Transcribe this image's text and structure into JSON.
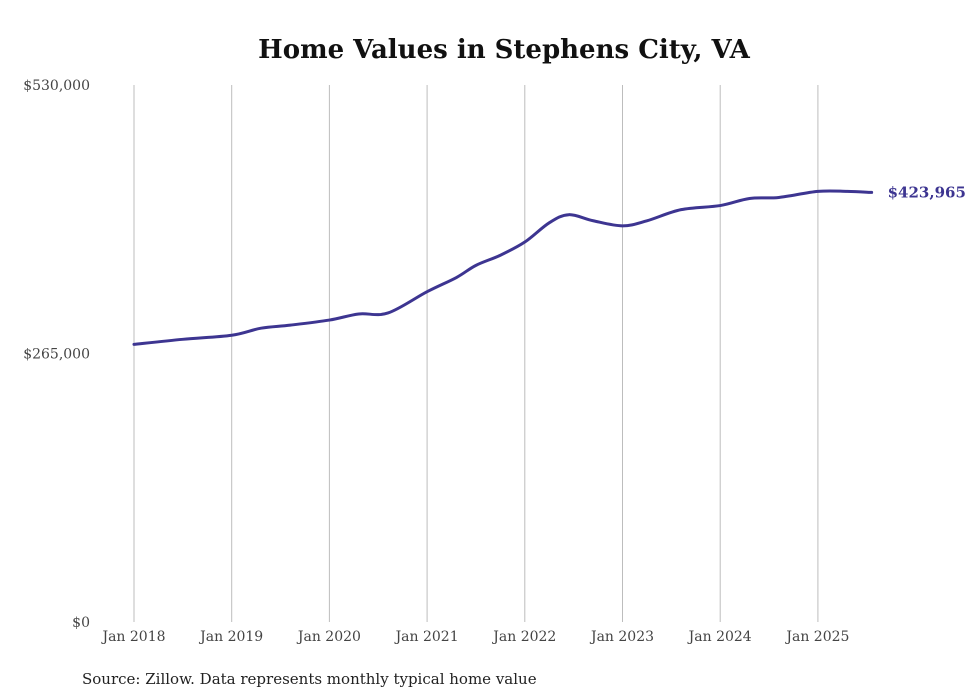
{
  "chart_data": {
    "type": "line",
    "title": "Home Values in Stephens City, VA",
    "source": "Source: Zillow. Data represents monthly typical home value",
    "xlabel": "",
    "ylabel": "",
    "ylim": [
      0,
      530000
    ],
    "xlim": [
      2018.0,
      2025.55
    ],
    "y_ticks": [
      {
        "value": 0,
        "label": "$0"
      },
      {
        "value": 265000,
        "label": "$265,000"
      },
      {
        "value": 530000,
        "label": "$530,000"
      }
    ],
    "x_ticks": [
      {
        "value": 2018,
        "label": "Jan 2018"
      },
      {
        "value": 2019,
        "label": "Jan 2019"
      },
      {
        "value": 2020,
        "label": "Jan 2020"
      },
      {
        "value": 2021,
        "label": "Jan 2021"
      },
      {
        "value": 2022,
        "label": "Jan 2022"
      },
      {
        "value": 2023,
        "label": "Jan 2023"
      },
      {
        "value": 2024,
        "label": "Jan 2024"
      },
      {
        "value": 2025,
        "label": "Jan 2025"
      }
    ],
    "grid": "vertical",
    "line_color": "#3d3591",
    "end_label": "$423,965",
    "series": [
      {
        "name": "Typical home value",
        "x": [
          2018.0,
          2018.5,
          2019.0,
          2019.3,
          2019.6,
          2020.0,
          2020.3,
          2020.6,
          2021.0,
          2021.3,
          2021.5,
          2021.75,
          2022.0,
          2022.25,
          2022.45,
          2022.7,
          2023.0,
          2023.25,
          2023.6,
          2024.0,
          2024.3,
          2024.6,
          2025.0,
          2025.3,
          2025.55
        ],
        "values": [
          274000,
          279000,
          283000,
          290000,
          293000,
          298000,
          304000,
          305000,
          326000,
          340000,
          352000,
          362000,
          375000,
          394000,
          402000,
          396000,
          391000,
          396000,
          407000,
          411000,
          418000,
          419000,
          425000,
          425000,
          423965
        ]
      }
    ]
  }
}
